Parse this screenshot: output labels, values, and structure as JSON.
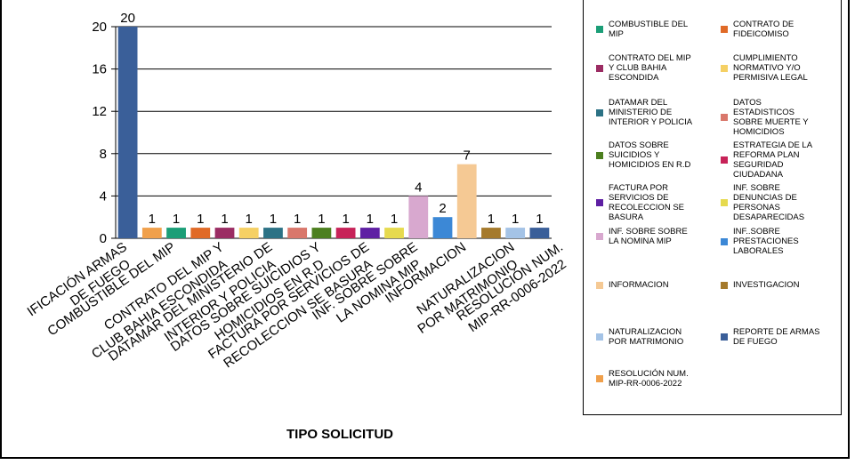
{
  "chart_data": {
    "type": "bar",
    "title": "",
    "xlabel": "TIPO SOLICITUD",
    "ylabel": "",
    "ylim": [
      0,
      20
    ],
    "yticks": [
      0,
      4,
      8,
      12,
      16,
      20
    ],
    "grid": true,
    "legend_placement": "right",
    "categories": [
      "REPORTE DE ARMAS DE FUEGO",
      "COMBUSTIBLE DEL MIP",
      "CONTRATO DE FIDEICOMISO",
      "CONTRATO DEL MIP Y CLUB BAHIA ESCONDIDA",
      "CUMPLIMIENTO NORMATIVO Y/O PERMISIVA LEGAL",
      "DATAMAR DEL MINISTERIO DE INTERIOR Y POLICIA",
      "DATOS ESTADISTICOS SOBRE MUERTE Y HOMICIDIOS",
      "DATOS SOBRE SUICIDIOS Y HOMICIDIOS EN R.D",
      "ESTRATEGIA DE LA REFORMA PLAN SEGURIDAD CIUDADANA",
      "FACTURA POR SERVICIOS DE RECOLECCION SE BASURA",
      "INF. SOBRE DENUNCIAS DE PERSONAS DESAPARECIDAS",
      "INF. SOBRE SOBRE LA NOMINA MIP",
      "INF..SOBRE PRESTACIONES LABORALES",
      "INFORMACION",
      "INVESTIGACION",
      "NATURALIZACION POR MATRIMONIO",
      "REPORTE DE ARMAS DE FUEGO",
      "RESOLUCIÓN NUM. MIP-RR-0006-2022"
    ],
    "values": [
      20,
      1,
      1,
      1,
      1,
      1,
      1,
      1,
      1,
      1,
      1,
      1,
      4,
      2,
      7,
      1,
      1,
      1
    ],
    "colors": [
      "#3A5F99",
      "#F0A04B",
      "#1B9E77",
      "#E06A27",
      "#9B2C63",
      "#F5D064",
      "#2C7285",
      "#D9776B",
      "#4C7F1F",
      "#C72258",
      "#5E1FA3",
      "#E6DA4E",
      "#D8A8CF",
      "#3C88D6",
      "#F5C994",
      "#A57A2C",
      "#A4C3E6",
      "#3A5F99"
    ],
    "x_tick_labels": [
      "IFICACIÓN ARMAS DE FUEGO",
      "COMBUSTIBLE DEL MIP",
      "CONTRATO DEL MIP Y CLUB BAHIA ESCONDIDA",
      "DATAMAR DEL MINISTERIO DE INTERIOR Y POLICIA",
      "DATOS SOBRE SUICIDIOS Y HOMICIDIOS EN R.D",
      "FACTURA POR SERVICIOS DE RECOLECCION SE BASURA",
      "INF. SOBRE SOBRE LA NOMINA MIP",
      "INFORMACION",
      "NATURALIZACION POR MATRIMONIO",
      "RESOLUCIÓN NUM. MIP-RR-0006-2022"
    ],
    "legend": [
      {
        "label": "COMBUSTIBLE DEL MIP",
        "color": "#1B9E77"
      },
      {
        "label": "CONTRATO DE FIDEICOMISO",
        "color": "#E06A27"
      },
      {
        "label": "CONTRATO DEL MIP Y CLUB BAHIA ESCONDIDA",
        "color": "#9B2C63"
      },
      {
        "label": "CUMPLIMIENTO NORMATIVO Y/O PERMISIVA LEGAL",
        "color": "#F5D064"
      },
      {
        "label": "DATAMAR DEL MINISTERIO DE INTERIOR Y POLICIA",
        "color": "#2C7285"
      },
      {
        "label": "DATOS ESTADISTICOS SOBRE MUERTE Y HOMICIDIOS",
        "color": "#D9776B"
      },
      {
        "label": "DATOS SOBRE SUICIDIOS Y HOMICIDIOS EN R.D",
        "color": "#4C7F1F"
      },
      {
        "label": "ESTRATEGIA DE LA REFORMA PLAN SEGURIDAD CIUDADANA",
        "color": "#C72258"
      },
      {
        "label": "FACTURA POR SERVICIOS DE RECOLECCION SE BASURA",
        "color": "#5E1FA3"
      },
      {
        "label": "INF. SOBRE DENUNCIAS DE PERSONAS DESAPARECIDAS",
        "color": "#E6DA4E"
      },
      {
        "label": "INF. SOBRE SOBRE LA NOMINA MIP",
        "color": "#D8A8CF"
      },
      {
        "label": "INF..SOBRE PRESTACIONES LABORALES",
        "color": "#3C88D6"
      },
      {
        "label": "INFORMACION",
        "color": "#F5C994"
      },
      {
        "label": "INVESTIGACION",
        "color": "#A57A2C"
      },
      {
        "label": "NATURALIZACION POR MATRIMONIO",
        "color": "#A4C3E6"
      },
      {
        "label": "REPORTE DE ARMAS DE FUEGO",
        "color": "#3A5F99"
      },
      {
        "label": "RESOLUCIÓN NUM. MIP-RR-0006-2022",
        "color": "#F0A04B"
      }
    ]
  }
}
